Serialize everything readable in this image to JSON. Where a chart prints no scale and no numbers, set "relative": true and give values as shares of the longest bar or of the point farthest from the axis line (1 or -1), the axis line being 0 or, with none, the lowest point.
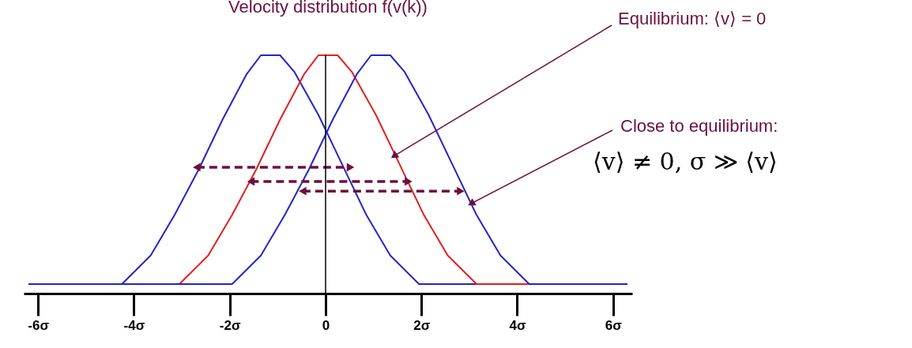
{
  "chart_data": {
    "type": "line",
    "title": "Velocity distribution f(v(k))",
    "relative": true,
    "xlim": [
      -6.3,
      6.4
    ],
    "xticks": [
      {
        "value": -6,
        "label": "-6σ"
      },
      {
        "value": -4,
        "label": "-4σ"
      },
      {
        "value": -2,
        "label": "-2σ"
      },
      0,
      {
        "value": 2,
        "label": "2σ"
      },
      {
        "value": 4,
        "label": "4σ"
      },
      {
        "value": 6,
        "label": "6σ"
      }
    ],
    "grid": false,
    "marker": "none",
    "line_style": "solid",
    "ref_lines": [
      {
        "axis": "x",
        "value": 0,
        "color": "#000000"
      }
    ],
    "annotations": [
      {
        "text": "Equilibrium: ⟨v⟩ = 0",
        "x": 1.45,
        "y": 0.58
      },
      {
        "text": "Close to equilibrium:",
        "x": 3.06,
        "y": 0.38
      },
      "⟨v⟩ ≠ 0, σ ≫ ⟨v⟩"
    ],
    "series": [
      {
        "color": "#2424c8",
        "x": [
          -6.2,
          -4.25,
          -3.65,
          -3.15,
          -2.65,
          -2.15,
          -1.65,
          -1.35,
          -0.95,
          -0.65,
          -0.15,
          0.35,
          0.85,
          1.35,
          1.95,
          6.3
        ],
        "values": [
          0.04,
          0.04,
          0.16,
          0.33,
          0.52,
          0.73,
          0.92,
          1.0,
          1.0,
          0.93,
          0.75,
          0.54,
          0.33,
          0.16,
          0.04,
          0.04
        ]
      },
      {
        "color": "#e02020",
        "x": [
          -6.2,
          -3.05,
          -2.45,
          -1.95,
          -1.45,
          -0.95,
          -0.45,
          -0.15,
          0.25,
          0.55,
          1.05,
          1.55,
          2.05,
          2.55,
          3.15,
          6.3
        ],
        "values": [
          0.04,
          0.04,
          0.16,
          0.33,
          0.52,
          0.73,
          0.92,
          1.0,
          1.0,
          0.93,
          0.75,
          0.54,
          0.33,
          0.16,
          0.04,
          0.04
        ]
      },
      {
        "color": "#2424c8",
        "x": [
          -6.2,
          -1.95,
          -1.35,
          -0.85,
          -0.35,
          0.15,
          0.65,
          0.95,
          1.35,
          1.65,
          2.15,
          2.65,
          3.15,
          3.65,
          4.25,
          6.3
        ],
        "values": [
          0.04,
          0.04,
          0.16,
          0.33,
          0.52,
          0.73,
          0.92,
          1.0,
          1.0,
          0.93,
          0.75,
          0.54,
          0.33,
          0.16,
          0.04,
          0.04
        ]
      },
      {
        "color": "#6b1040",
        "line_style": "dashed",
        "marker": "triangle",
        "x": [
          -2.69,
          0.52
        ],
        "values": [
          0.53,
          0.53
        ]
      },
      {
        "color": "#6b1040",
        "line_style": "dashed",
        "marker": "triangle",
        "x": [
          -1.56,
          1.73
        ],
        "values": [
          0.47,
          0.47
        ]
      },
      {
        "color": "#6b1040",
        "line_style": "dashed",
        "marker": "triangle",
        "x": [
          -0.48,
          2.82
        ],
        "values": [
          0.43,
          0.43
        ]
      }
    ]
  }
}
